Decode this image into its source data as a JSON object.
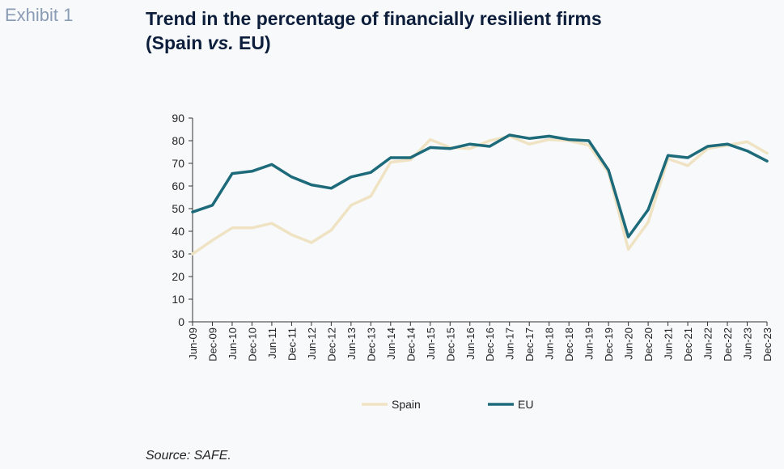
{
  "header": {
    "exhibit": "Exhibit 1",
    "title_line1": "Trend in the percentage of financially resilient firms",
    "title_line2_pre": "(Spain ",
    "title_line2_em": "vs.",
    "title_line2_post": " EU)"
  },
  "source": "Source: SAFE.",
  "chart_data": {
    "type": "line",
    "title": "Trend in the percentage of financially resilient firms (Spain vs. EU)",
    "xlabel": "",
    "ylabel": "",
    "ylim": [
      0,
      90
    ],
    "yticks": [
      0,
      10,
      20,
      30,
      40,
      50,
      60,
      70,
      80,
      90
    ],
    "grid": false,
    "legend_position": "bottom",
    "categories": [
      "Jun-09",
      "Dec-09",
      "Jun-10",
      "Dec-10",
      "Jun-11",
      "Dec-11",
      "Jun-12",
      "Dec-12",
      "Jun-13",
      "Dec-13",
      "Jun-14",
      "Dec-14",
      "Jun-15",
      "Dec-15",
      "Jun-16",
      "Dec-16",
      "Jun-17",
      "Dec-17",
      "Jun-18",
      "Dec-18",
      "Jun-19",
      "Dec-19",
      "Jun-20",
      "Dec-20",
      "Jun-21",
      "Dec-21",
      "Jun-22",
      "Dec-22",
      "Jun-23",
      "Dec-23"
    ],
    "series": [
      {
        "name": "Spain",
        "color": "#efe3c4",
        "values": [
          30,
          36,
          41.5,
          41.5,
          43.5,
          38.5,
          35,
          40.5,
          51.5,
          55.5,
          70.5,
          71.5,
          80.5,
          77,
          76.5,
          80,
          82,
          78.5,
          80.5,
          80,
          78,
          66,
          32,
          44,
          72,
          69,
          76.5,
          78,
          79.5,
          74.5
        ]
      },
      {
        "name": "EU",
        "color": "#1d6a7a",
        "values": [
          48.5,
          51.5,
          65.5,
          66.5,
          69.5,
          64,
          60.5,
          59,
          64,
          66,
          72.5,
          72.5,
          77,
          76.5,
          78.5,
          77.5,
          82.5,
          81,
          82,
          80.5,
          80,
          67,
          37.5,
          49.5,
          73.5,
          72.5,
          77.5,
          78.5,
          75.5,
          71
        ]
      }
    ]
  }
}
